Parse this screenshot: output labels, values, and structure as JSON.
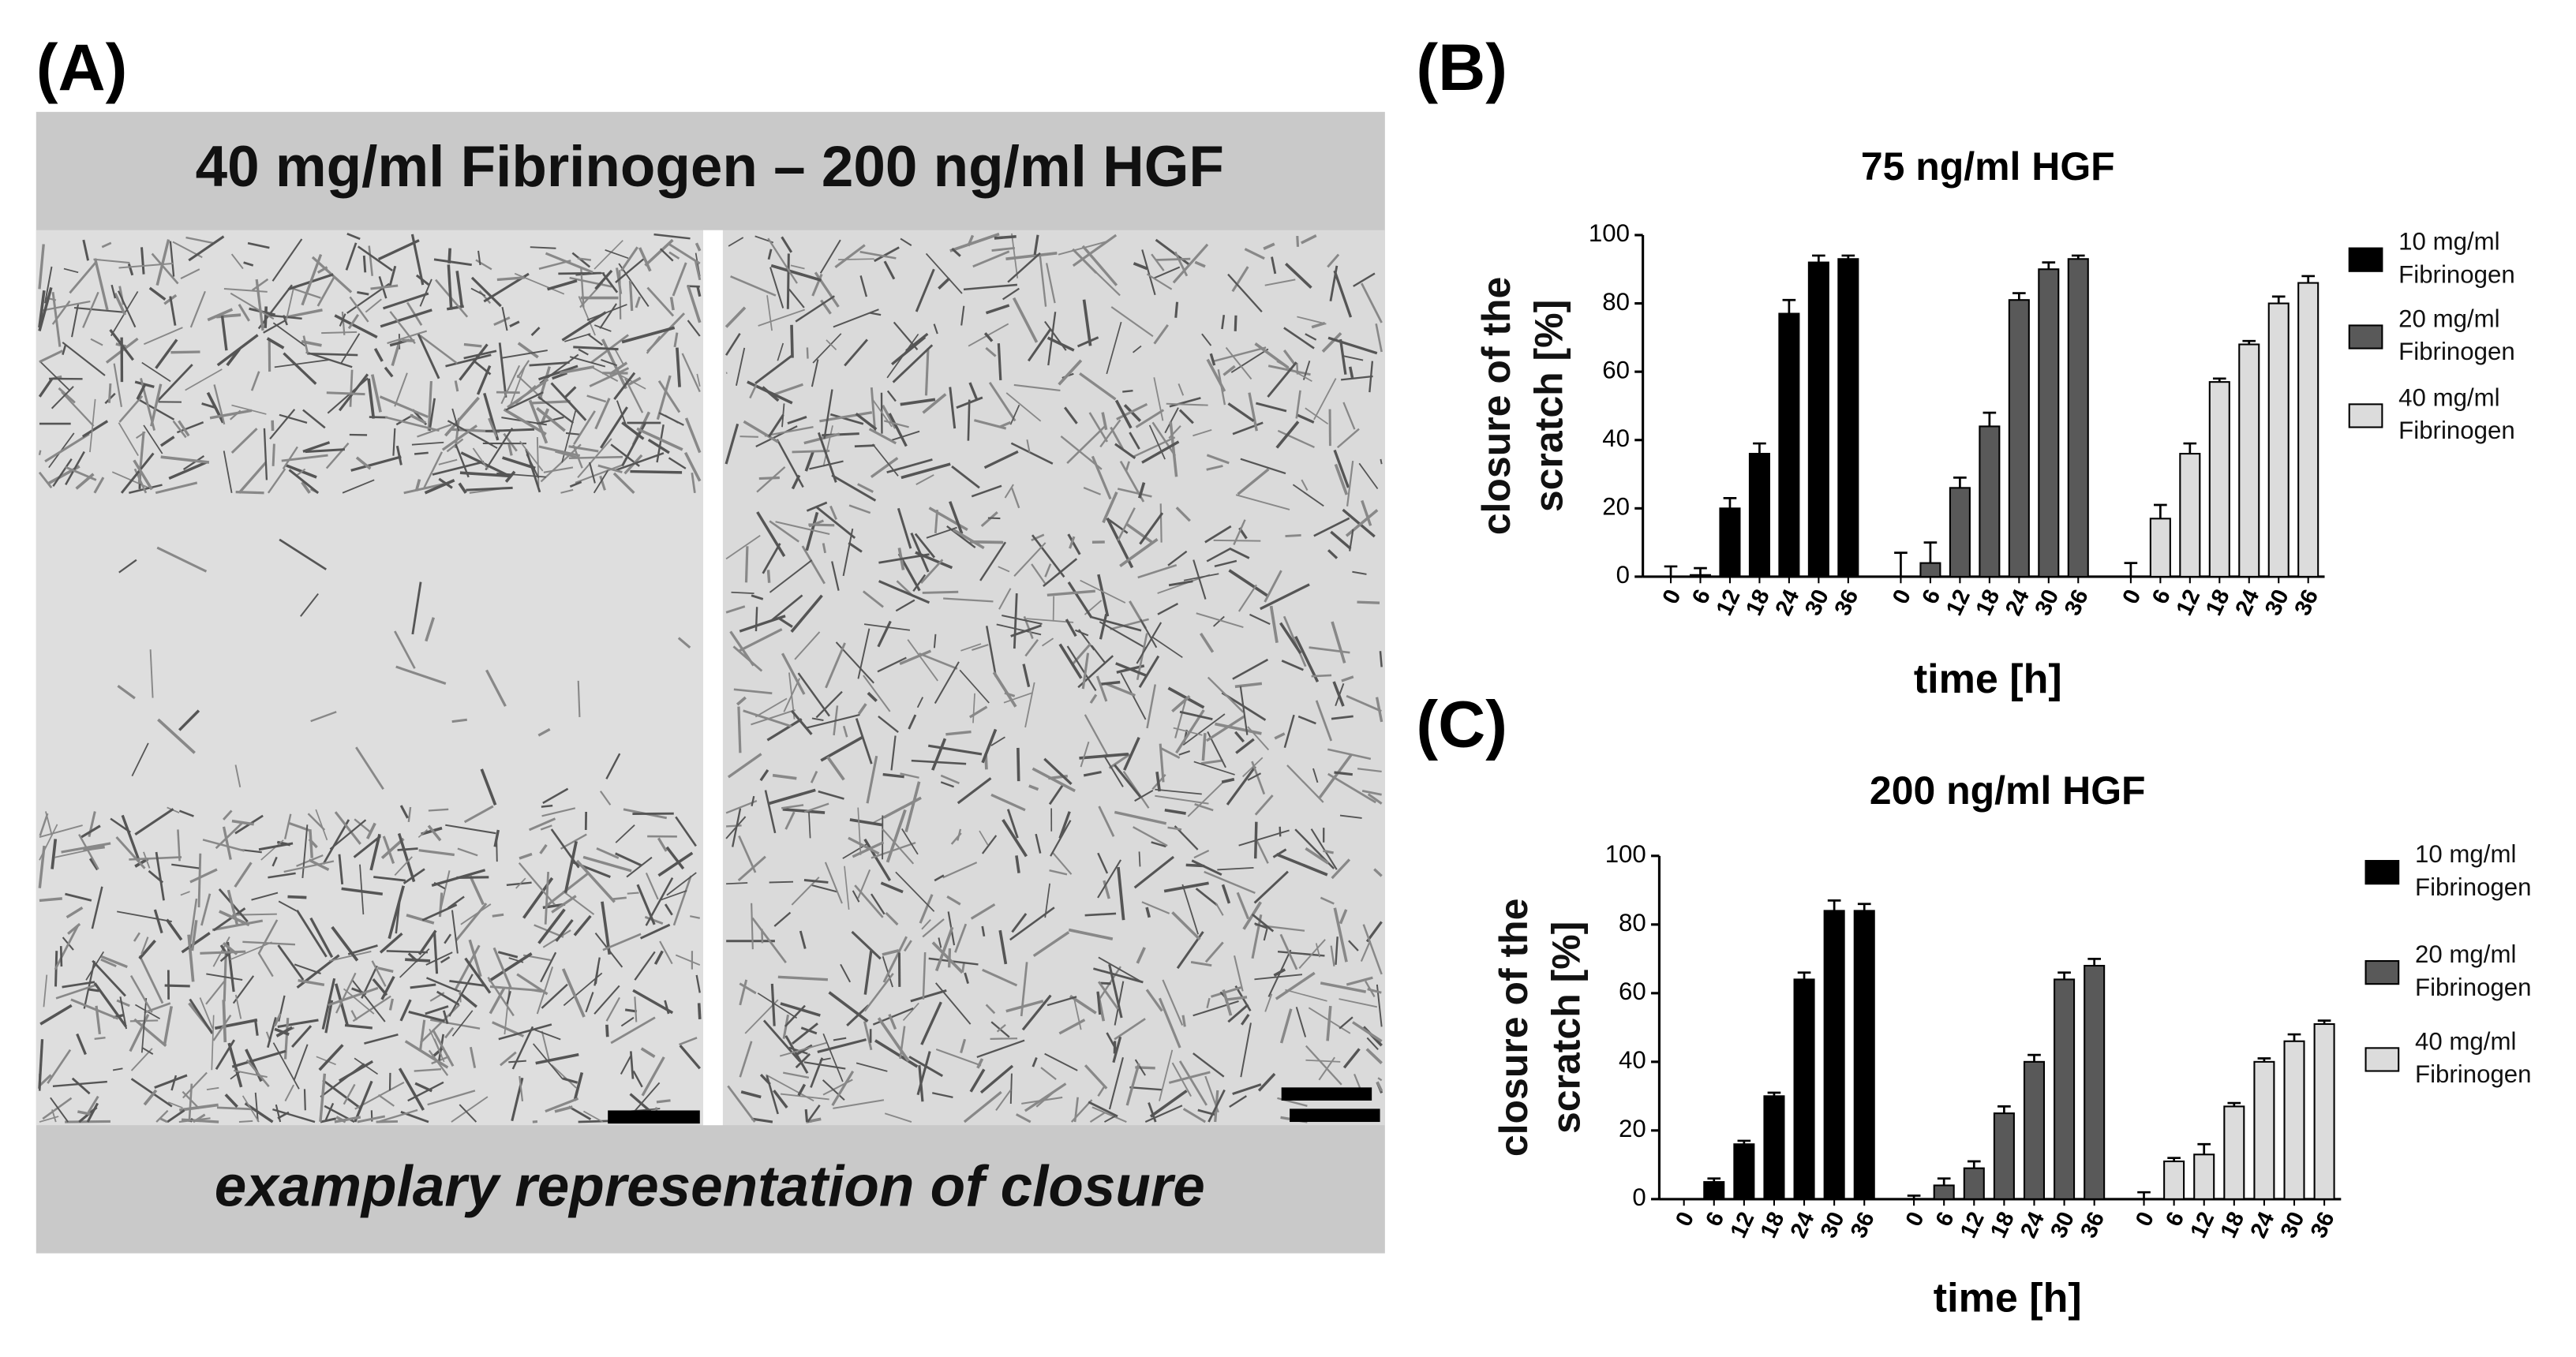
{
  "panel_a": {
    "panel_label": "(A)",
    "title": "40 mg/ml Fibrinogen – 200 ng/ml HGF",
    "caption": "examplary representation of closure"
  },
  "chart_data": [
    {
      "type": "bar",
      "panel_label": "(B)",
      "title": "75 ng/ml HGF",
      "x_label": "time [h]",
      "y_label": "closure of the scratch [%]",
      "categories": [
        "0",
        "6",
        "12",
        "18",
        "24",
        "30",
        "36"
      ],
      "ylim": [
        0,
        100
      ],
      "yticks": [
        0,
        20,
        40,
        60,
        80,
        100
      ],
      "grid": false,
      "legend": "right",
      "series": [
        {
          "name": "10 mg/ml Fibrinogen",
          "color": "#000000",
          "values": [
            0,
            0.5,
            20,
            36,
            77,
            92,
            93
          ],
          "errors": [
            3,
            2,
            3,
            3,
            4,
            2,
            1
          ]
        },
        {
          "name": "20 mg/ml Fibrinogen",
          "color": "#595959",
          "values": [
            0,
            4,
            26,
            44,
            81,
            90,
            93
          ],
          "errors": [
            7,
            6,
            3,
            4,
            2,
            2,
            1
          ]
        },
        {
          "name": "40 mg/ml Fibrinogen",
          "color": "#dcdcdc",
          "values": [
            0,
            17,
            36,
            57,
            68,
            80,
            86
          ],
          "errors": [
            4,
            4,
            3,
            1,
            1,
            2,
            2
          ]
        }
      ]
    },
    {
      "type": "bar",
      "panel_label": "(C)",
      "title": "200 ng/ml HGF",
      "x_label": "time [h]",
      "y_label": "closure of the scratch [%]",
      "categories": [
        "0",
        "6",
        "12",
        "18",
        "24",
        "30",
        "36"
      ],
      "ylim": [
        0,
        100
      ],
      "yticks": [
        0,
        20,
        40,
        60,
        80,
        100
      ],
      "grid": false,
      "legend": "right",
      "series": [
        {
          "name": "10 mg/ml Fibrinogen",
          "color": "#000000",
          "values": [
            0,
            5,
            16,
            30,
            64,
            84,
            84
          ],
          "errors": [
            0,
            1,
            1,
            1,
            2,
            3,
            2
          ]
        },
        {
          "name": "20 mg/ml Fibrinogen",
          "color": "#595959",
          "values": [
            0,
            4,
            9,
            25,
            40,
            64,
            68
          ],
          "errors": [
            1,
            2,
            2,
            2,
            2,
            2,
            2
          ]
        },
        {
          "name": "40 mg/ml Fibrinogen",
          "color": "#dcdcdc",
          "values": [
            0,
            11,
            13,
            27,
            40,
            46,
            51
          ],
          "errors": [
            2,
            1,
            3,
            1,
            1,
            2,
            1
          ]
        }
      ]
    }
  ]
}
